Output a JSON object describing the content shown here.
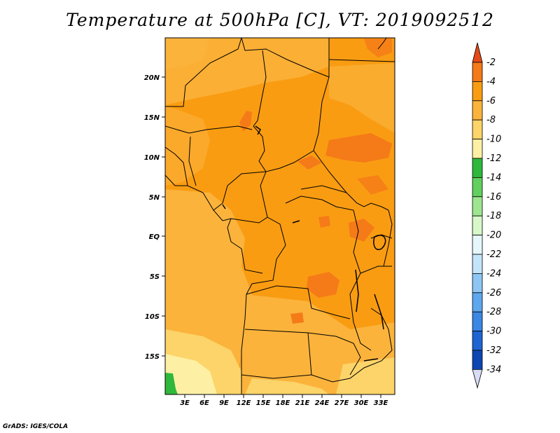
{
  "title": "Temperature at 500hPa [C], VT: 2019092512",
  "credit": "GrADS: IGES/COLA",
  "lat_labels": [
    "20N",
    "15N",
    "10N",
    "5N",
    "EQ",
    "5S",
    "10S",
    "15S"
  ],
  "lon_labels": [
    "3E",
    "6E",
    "9E",
    "12E",
    "15E",
    "18E",
    "21E",
    "24E",
    "27E",
    "30E",
    "33E"
  ],
  "colorbar": {
    "labels": [
      "-2",
      "-4",
      "-6",
      "-8",
      "-10",
      "-12",
      "-14",
      "-16",
      "-18",
      "-20",
      "-22",
      "-24",
      "-26",
      "-28",
      "-30",
      "-32",
      "-34"
    ],
    "colors": [
      "#e34a17",
      "#f57a18",
      "#f99c12",
      "#fbb33c",
      "#fcd469",
      "#fdf0a4",
      "#2fb83b",
      "#62d05e",
      "#9ee58f",
      "#d7f7c8",
      "#e6f7fb",
      "#c3e4fa",
      "#8dc6f4",
      "#5da7ee",
      "#3a87e4",
      "#1e64d2",
      "#0d45b3",
      "#0b2078",
      "#d9dcf5"
    ]
  },
  "colors": {
    "base_orange": "#f99c12",
    "light_orange": "#fbb33c",
    "pale_yellow": "#fcd469",
    "cream": "#fdf0a4",
    "dark_orange": "#f57a18",
    "green": "#2fb83b"
  }
}
